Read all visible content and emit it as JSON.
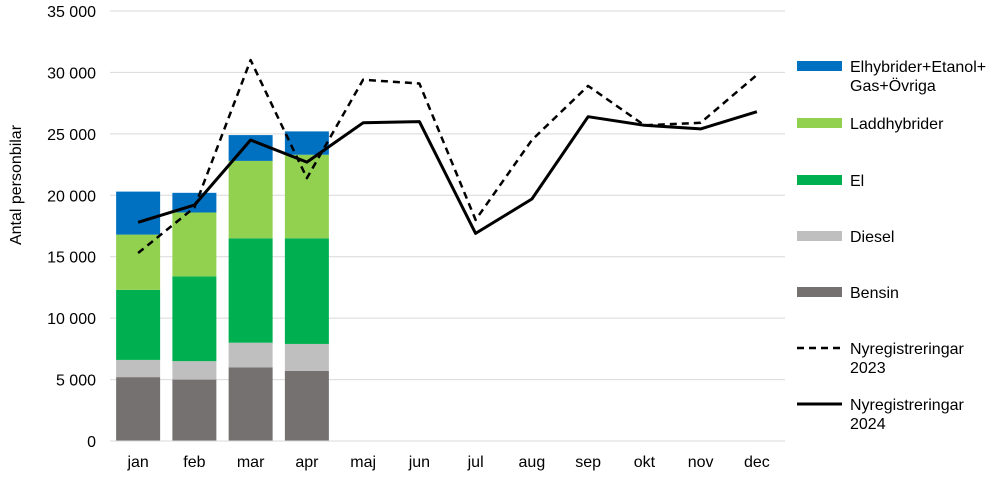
{
  "chart_data": {
    "type": "bar",
    "ylabel": "Antal personbilar",
    "ylim": [
      0,
      35000
    ],
    "ytick_values": [
      0,
      5000,
      10000,
      15000,
      20000,
      25000,
      30000,
      35000
    ],
    "ytick_labels": [
      "0",
      "5 000",
      "10 000",
      "15 000",
      "20 000",
      "25 000",
      "30 000",
      "35 000"
    ],
    "grid": true,
    "legend_position": "right",
    "categories": [
      "jan",
      "feb",
      "mar",
      "apr",
      "maj",
      "jun",
      "jul",
      "aug",
      "sep",
      "okt",
      "nov",
      "dec"
    ],
    "stacked_series": [
      {
        "name": "Bensin",
        "color": "#767171",
        "values": [
          5200,
          5000,
          6000,
          5700,
          null,
          null,
          null,
          null,
          null,
          null,
          null,
          null
        ]
      },
      {
        "name": "Diesel",
        "color": "#bfbfbf",
        "values": [
          1400,
          1500,
          2000,
          2200,
          null,
          null,
          null,
          null,
          null,
          null,
          null,
          null
        ]
      },
      {
        "name": "El",
        "color": "#00b050",
        "values": [
          5700,
          6900,
          8500,
          8600,
          null,
          null,
          null,
          null,
          null,
          null,
          null,
          null
        ]
      },
      {
        "name": "Laddhybrider",
        "color": "#92d050",
        "values": [
          4500,
          5200,
          6300,
          6800,
          null,
          null,
          null,
          null,
          null,
          null,
          null,
          null
        ]
      },
      {
        "name": "Elhybrider+Etanol+ Gas+Övriga",
        "color": "#0070c0",
        "values": [
          3500,
          1600,
          2100,
          1900,
          null,
          null,
          null,
          null,
          null,
          null,
          null,
          null
        ]
      }
    ],
    "line_series": [
      {
        "name": "Nyregistreringar 2023",
        "style": "dashed",
        "color": "#000000",
        "values": [
          15300,
          19000,
          31000,
          21400,
          29400,
          29100,
          18000,
          24500,
          28900,
          25700,
          25900,
          29800
        ]
      },
      {
        "name": "Nyregistreringar 2024",
        "style": "solid",
        "color": "#000000",
        "values": [
          17800,
          19200,
          24500,
          22700,
          25900,
          26000,
          16900,
          19700,
          26400,
          25700,
          25400,
          26800
        ]
      }
    ],
    "legend": [
      {
        "label_lines": [
          "Elhybrider+Etanol+",
          "Gas+Övriga"
        ],
        "kind": "rect",
        "color": "#0070c0"
      },
      {
        "label_lines": [
          "Laddhybrider"
        ],
        "kind": "rect",
        "color": "#92d050"
      },
      {
        "label_lines": [
          "El"
        ],
        "kind": "rect",
        "color": "#00b050"
      },
      {
        "label_lines": [
          "Diesel"
        ],
        "kind": "rect",
        "color": "#bfbfbf"
      },
      {
        "label_lines": [
          "Bensin"
        ],
        "kind": "rect",
        "color": "#767171"
      },
      {
        "label_lines": [
          "Nyregistreringar",
          "2023"
        ],
        "kind": "dashed-line",
        "color": "#000000"
      },
      {
        "label_lines": [
          "Nyregistreringar",
          "2024"
        ],
        "kind": "solid-line",
        "color": "#000000"
      }
    ]
  }
}
